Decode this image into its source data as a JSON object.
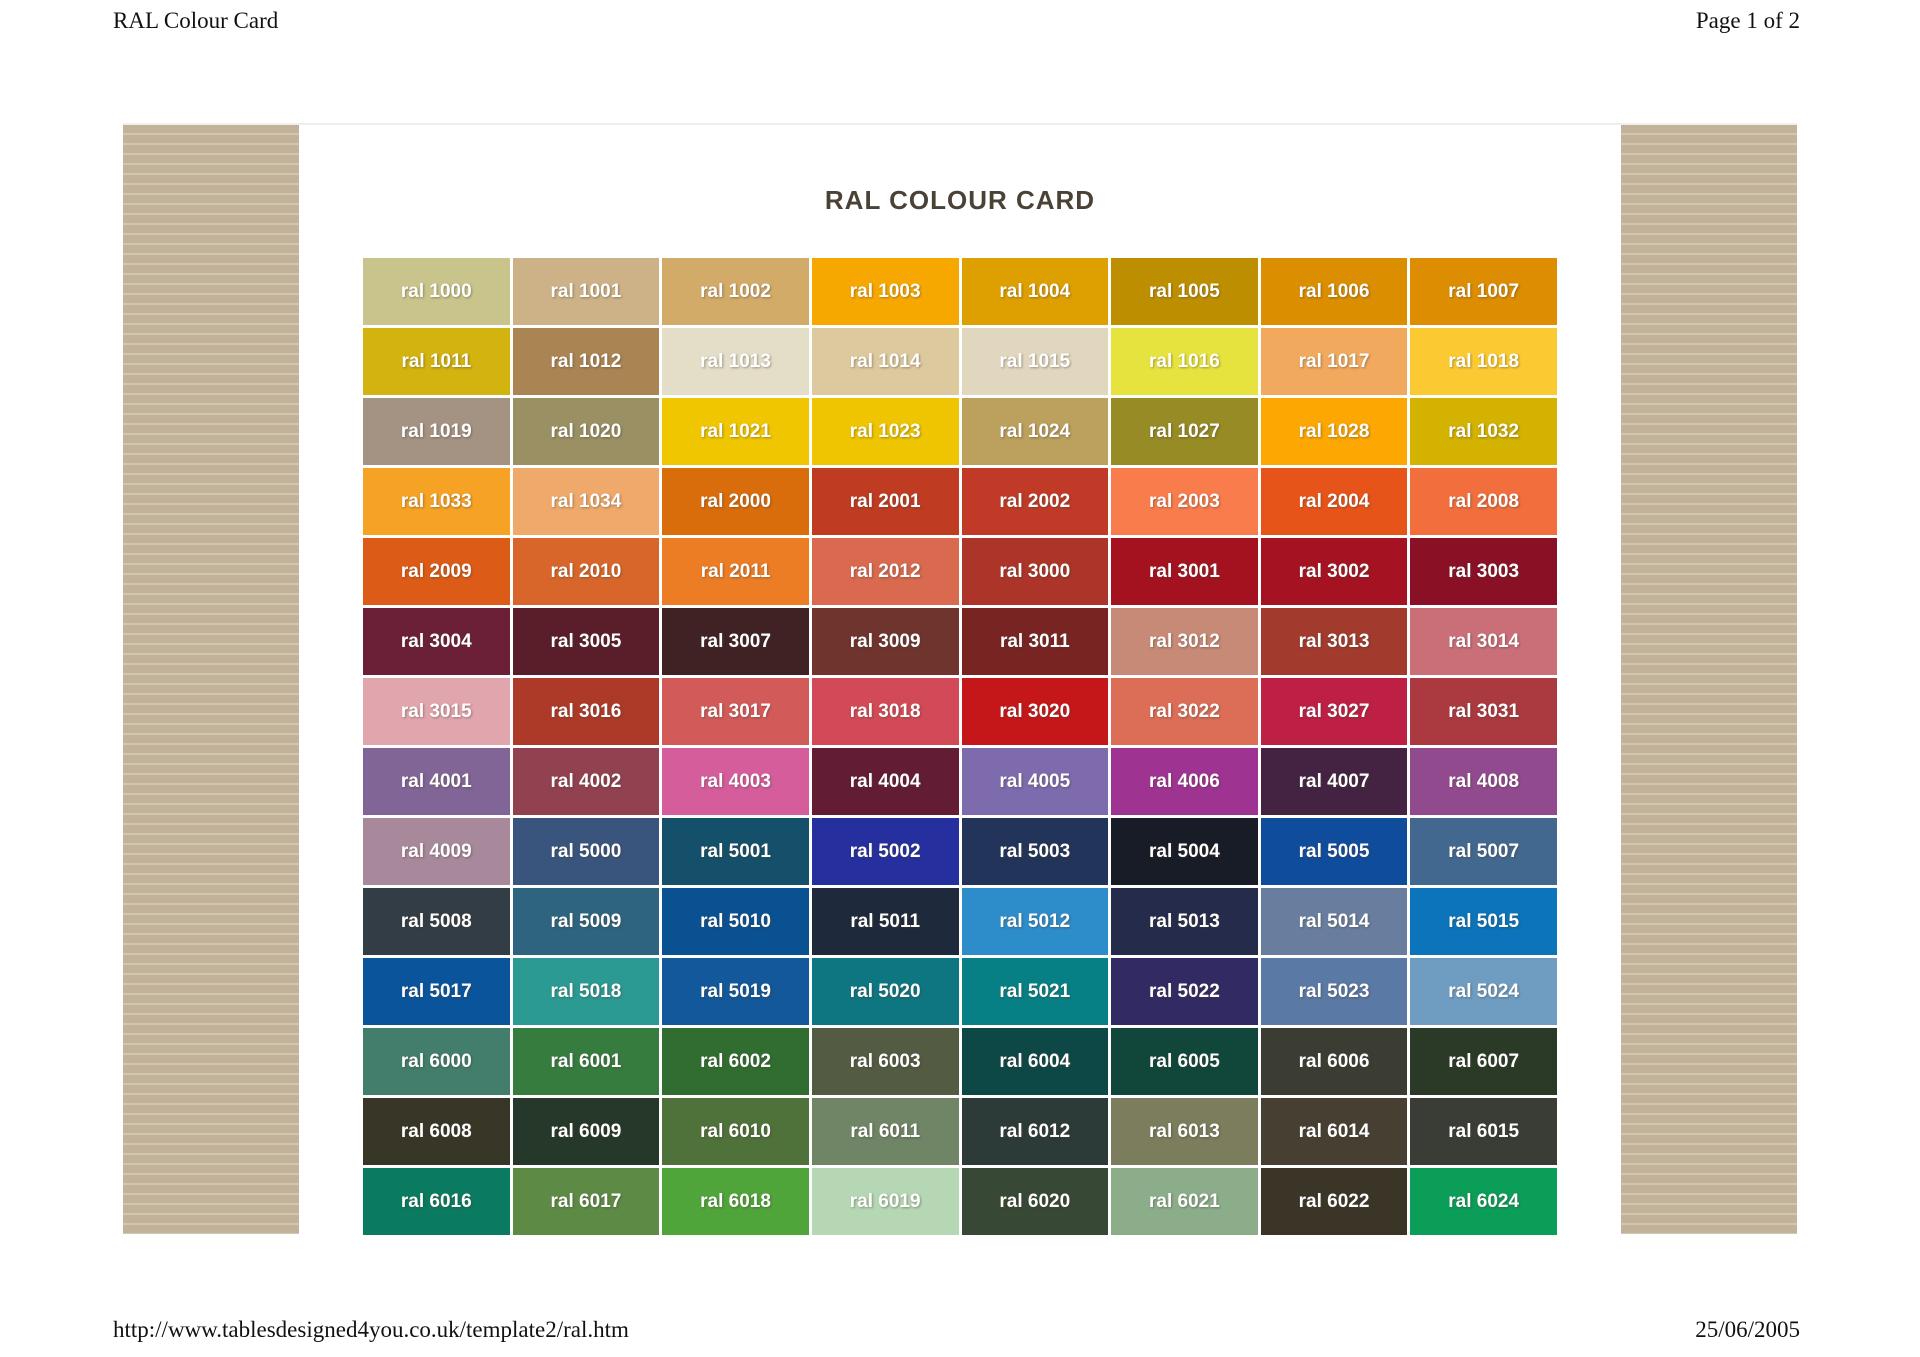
{
  "page": {
    "header_left": "RAL Colour Card",
    "header_right": "Page 1 of 2",
    "footer_left": "http://www.tablesdesigned4you.co.uk/template2/ral.htm",
    "footer_right": "25/06/2005",
    "title": "RAL COLOUR CARD"
  },
  "colors": {
    "title_text": "#4a4236",
    "margin_base": "#c3b29a",
    "margin_stripe": "#d2c5b1",
    "label_text": "#ffffff"
  },
  "swatches": [
    {
      "label": "ral 1000",
      "color": "#c9c48c"
    },
    {
      "label": "ral 1001",
      "color": "#cdb287"
    },
    {
      "label": "ral 1002",
      "color": "#d3ab69"
    },
    {
      "label": "ral 1003",
      "color": "#f7a800"
    },
    {
      "label": "ral 1004",
      "color": "#dda000"
    },
    {
      "label": "ral 1005",
      "color": "#bd8f00"
    },
    {
      "label": "ral 1006",
      "color": "#da8e00"
    },
    {
      "label": "ral 1007",
      "color": "#dd8d02"
    },
    {
      "label": "ral 1011",
      "color": "#d3b30f"
    },
    {
      "label": "ral 1012",
      "color": "#ab8453"
    },
    {
      "label": "ral 1013",
      "color": "#e4ddc8"
    },
    {
      "label": "ral 1014",
      "color": "#ddc99e"
    },
    {
      "label": "ral 1015",
      "color": "#e1d7bf"
    },
    {
      "label": "ral 1016",
      "color": "#e7e33e"
    },
    {
      "label": "ral 1017",
      "color": "#f1a95e"
    },
    {
      "label": "ral 1018",
      "color": "#fbca32"
    },
    {
      "label": "ral 1019",
      "color": "#a49383"
    },
    {
      "label": "ral 1020",
      "color": "#9b9063"
    },
    {
      "label": "ral 1021",
      "color": "#f0c600"
    },
    {
      "label": "ral 1023",
      "color": "#eec500"
    },
    {
      "label": "ral 1024",
      "color": "#bca05d"
    },
    {
      "label": "ral 1027",
      "color": "#968b24"
    },
    {
      "label": "ral 1028",
      "color": "#fca702"
    },
    {
      "label": "ral 1032",
      "color": "#d3b200"
    },
    {
      "label": "ral 1033",
      "color": "#f6a224"
    },
    {
      "label": "ral 1034",
      "color": "#efa96a"
    },
    {
      "label": "ral 2000",
      "color": "#d96c0b"
    },
    {
      "label": "ral 2001",
      "color": "#bf3b22"
    },
    {
      "label": "ral 2002",
      "color": "#c03a27"
    },
    {
      "label": "ral 2003",
      "color": "#f87c4c"
    },
    {
      "label": "ral 2004",
      "color": "#e65419"
    },
    {
      "label": "ral 2008",
      "color": "#f26e3c"
    },
    {
      "label": "ral 2009",
      "color": "#dc5b17"
    },
    {
      "label": "ral 2010",
      "color": "#d8662a"
    },
    {
      "label": "ral 2011",
      "color": "#ec7d25"
    },
    {
      "label": "ral 2012",
      "color": "#d9694f"
    },
    {
      "label": "ral 3000",
      "color": "#ac3428"
    },
    {
      "label": "ral 3001",
      "color": "#a41220"
    },
    {
      "label": "ral 3002",
      "color": "#a51322"
    },
    {
      "label": "ral 3003",
      "color": "#8a1026"
    },
    {
      "label": "ral 3004",
      "color": "#6b2038"
    },
    {
      "label": "ral 3005",
      "color": "#591e29"
    },
    {
      "label": "ral 3007",
      "color": "#402225"
    },
    {
      "label": "ral 3009",
      "color": "#6e342d"
    },
    {
      "label": "ral 3011",
      "color": "#782423"
    },
    {
      "label": "ral 3012",
      "color": "#c78a76"
    },
    {
      "label": "ral 3013",
      "color": "#a23b2e"
    },
    {
      "label": "ral 3014",
      "color": "#ca6e78"
    },
    {
      "label": "ral 3015",
      "color": "#e1a6ad"
    },
    {
      "label": "ral 3016",
      "color": "#ad3a28"
    },
    {
      "label": "ral 3017",
      "color": "#d25b5a"
    },
    {
      "label": "ral 3018",
      "color": "#d24a57"
    },
    {
      "label": "ral 3020",
      "color": "#c5171a"
    },
    {
      "label": "ral 3022",
      "color": "#dc6e58"
    },
    {
      "label": "ral 3027",
      "color": "#bd2044"
    },
    {
      "label": "ral 3031",
      "color": "#ab3a40"
    },
    {
      "label": "ral 4001",
      "color": "#816597"
    },
    {
      "label": "ral 4002",
      "color": "#91414f"
    },
    {
      "label": "ral 4003",
      "color": "#d55d9c"
    },
    {
      "label": "ral 4004",
      "color": "#621c34"
    },
    {
      "label": "ral 4005",
      "color": "#7d6bad"
    },
    {
      "label": "ral 4006",
      "color": "#9e3391"
    },
    {
      "label": "ral 4007",
      "color": "#432341"
    },
    {
      "label": "ral 4008",
      "color": "#914a8e"
    },
    {
      "label": "ral 4009",
      "color": "#a8899b"
    },
    {
      "label": "ral 5000",
      "color": "#39557d"
    },
    {
      "label": "ral 5001",
      "color": "#15506a"
    },
    {
      "label": "ral 5002",
      "color": "#252f9e"
    },
    {
      "label": "ral 5003",
      "color": "#223459"
    },
    {
      "label": "ral 5004",
      "color": "#181c26"
    },
    {
      "label": "ral 5005",
      "color": "#104c9c"
    },
    {
      "label": "ral 5007",
      "color": "#43688f"
    },
    {
      "label": "ral 5008",
      "color": "#333d45"
    },
    {
      "label": "ral 5009",
      "color": "#2e6480"
    },
    {
      "label": "ral 5010",
      "color": "#0a5191"
    },
    {
      "label": "ral 5011",
      "color": "#1e2a3c"
    },
    {
      "label": "ral 5012",
      "color": "#2d8dca"
    },
    {
      "label": "ral 5013",
      "color": "#252c4b"
    },
    {
      "label": "ral 5014",
      "color": "#697e9e"
    },
    {
      "label": "ral 5015",
      "color": "#0b74ba"
    },
    {
      "label": "ral 5017",
      "color": "#0a549c"
    },
    {
      "label": "ral 5018",
      "color": "#2b9a92"
    },
    {
      "label": "ral 5019",
      "color": "#12589a"
    },
    {
      "label": "ral 5020",
      "color": "#0e7680"
    },
    {
      "label": "ral 5021",
      "color": "#068084"
    },
    {
      "label": "ral 5022",
      "color": "#322a63"
    },
    {
      "label": "ral 5023",
      "color": "#5b79a5"
    },
    {
      "label": "ral 5024",
      "color": "#6f9dc2"
    },
    {
      "label": "ral 6000",
      "color": "#427e6b"
    },
    {
      "label": "ral 6001",
      "color": "#367c3f"
    },
    {
      "label": "ral 6002",
      "color": "#316d30"
    },
    {
      "label": "ral 6003",
      "color": "#535b43"
    },
    {
      "label": "ral 6004",
      "color": "#0e4846"
    },
    {
      "label": "ral 6005",
      "color": "#10473a"
    },
    {
      "label": "ral 6006",
      "color": "#3b3d33"
    },
    {
      "label": "ral 6007",
      "color": "#2b3a27"
    },
    {
      "label": "ral 6008",
      "color": "#383627"
    },
    {
      "label": "ral 6009",
      "color": "#253829"
    },
    {
      "label": "ral 6010",
      "color": "#4e7239"
    },
    {
      "label": "ral 6011",
      "color": "#6f8566"
    },
    {
      "label": "ral 6012",
      "color": "#2c3b37"
    },
    {
      "label": "ral 6013",
      "color": "#7b7d5c"
    },
    {
      "label": "ral 6014",
      "color": "#474032"
    },
    {
      "label": "ral 6015",
      "color": "#393d35"
    },
    {
      "label": "ral 6016",
      "color": "#0a7b60"
    },
    {
      "label": "ral 6017",
      "color": "#5d8b46"
    },
    {
      "label": "ral 6018",
      "color": "#4fa53a"
    },
    {
      "label": "ral 6019",
      "color": "#b5d7b3"
    },
    {
      "label": "ral 6020",
      "color": "#374834"
    },
    {
      "label": "ral 6021",
      "color": "#8cad8a"
    },
    {
      "label": "ral 6022",
      "color": "#3b3528"
    },
    {
      "label": "ral 6024",
      "color": "#0b9e58"
    }
  ]
}
